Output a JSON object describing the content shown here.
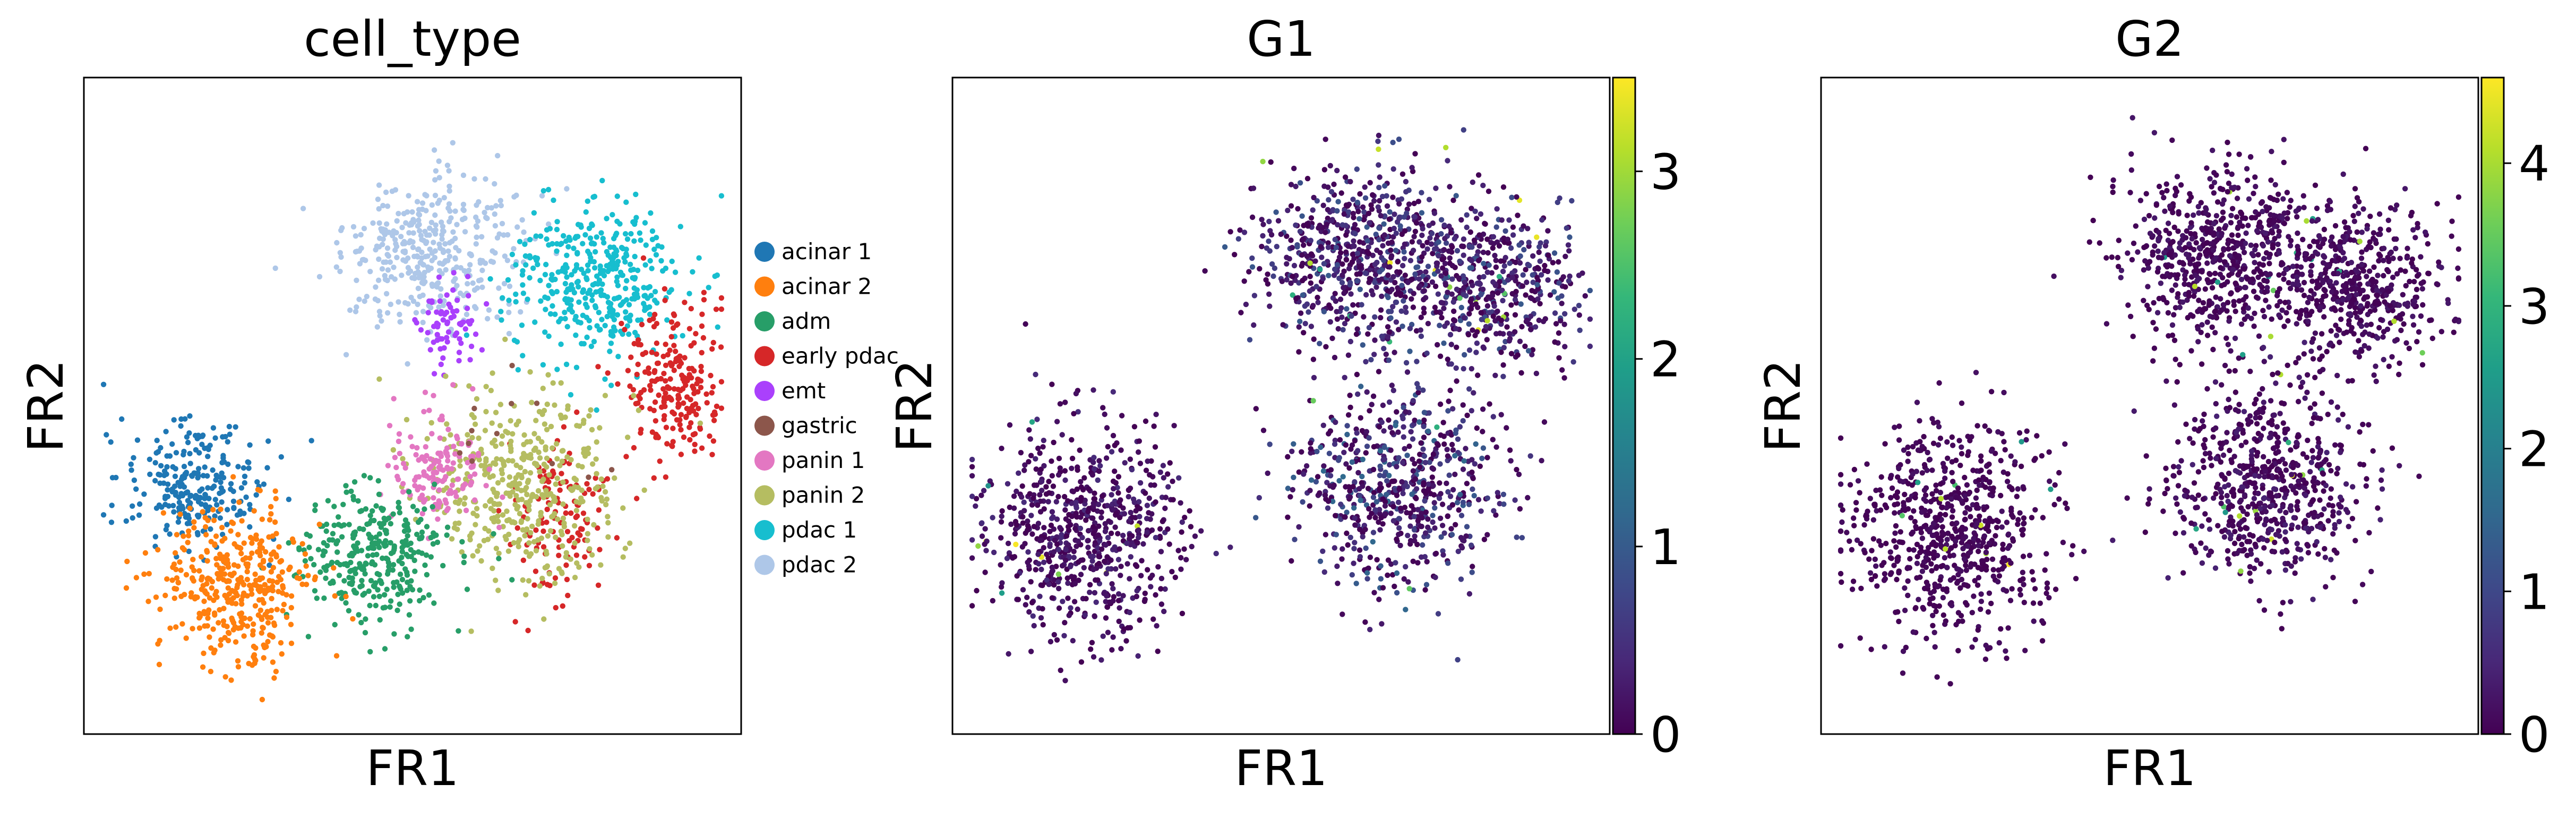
{
  "colorbar_colors": [
    "#440154",
    "#482878",
    "#3e4989",
    "#31688e",
    "#26828e",
    "#1f9e89",
    "#35b779",
    "#6ece58",
    "#b5de2b",
    "#fde725"
  ],
  "chart_data": [
    {
      "type": "scatter",
      "title": "cell_type",
      "xlabel": "FR1",
      "ylabel": "FR2",
      "coloring": "categorical",
      "legend": {
        "placement": "right",
        "entries": [
          {
            "name": "acinar 1",
            "color": "#1f77b4"
          },
          {
            "name": "acinar 2",
            "color": "#ff7f0e"
          },
          {
            "name": "adm",
            "color": "#279e68"
          },
          {
            "name": "early pdac",
            "color": "#d62728"
          },
          {
            "name": "emt",
            "color": "#aa40fc"
          },
          {
            "name": "gastric",
            "color": "#8c564b"
          },
          {
            "name": "panin 1",
            "color": "#e377c2"
          },
          {
            "name": "panin 2",
            "color": "#b5bd61"
          },
          {
            "name": "pdac 1",
            "color": "#17becf"
          },
          {
            "name": "pdac 2",
            "color": "#aec7e8"
          }
        ]
      },
      "clusters": [
        {
          "category": "pdac 2",
          "center": [
            0.53,
            0.27
          ],
          "spread": [
            0.11,
            0.09
          ],
          "count": 380
        },
        {
          "category": "pdac 1",
          "center": [
            0.78,
            0.31
          ],
          "spread": [
            0.11,
            0.1
          ],
          "count": 380
        },
        {
          "category": "early pdac",
          "center": [
            0.9,
            0.46
          ],
          "spread": [
            0.06,
            0.1
          ],
          "count": 220
        },
        {
          "category": "early pdac",
          "center": [
            0.72,
            0.68
          ],
          "spread": [
            0.06,
            0.1
          ],
          "count": 120
        },
        {
          "category": "emt",
          "center": [
            0.56,
            0.38
          ],
          "spread": [
            0.04,
            0.06
          ],
          "count": 70
        },
        {
          "category": "panin 2",
          "center": [
            0.67,
            0.62
          ],
          "spread": [
            0.12,
            0.11
          ],
          "count": 420
        },
        {
          "category": "panin 1",
          "center": [
            0.54,
            0.6
          ],
          "spread": [
            0.06,
            0.07
          ],
          "count": 150
        },
        {
          "category": "adm",
          "center": [
            0.44,
            0.73
          ],
          "spread": [
            0.09,
            0.08
          ],
          "count": 320
        },
        {
          "category": "acinar 1",
          "center": [
            0.17,
            0.62
          ],
          "spread": [
            0.09,
            0.08
          ],
          "count": 250
        },
        {
          "category": "acinar 2",
          "center": [
            0.23,
            0.77
          ],
          "spread": [
            0.1,
            0.1
          ],
          "count": 380
        },
        {
          "category": "gastric",
          "center": [
            0.66,
            0.56
          ],
          "spread": [
            0.1,
            0.1
          ],
          "count": 12
        }
      ]
    },
    {
      "type": "scatter",
      "title": "G1",
      "xlabel": "FR1",
      "ylabel": "FR2",
      "coloring": "continuous",
      "colormap": "viridis",
      "colorbar_range": [
        0,
        3.5
      ],
      "colorbar_ticks": [
        "0",
        "1",
        "2",
        "3"
      ],
      "colorbar_tick_values": [
        0,
        1,
        2,
        3
      ],
      "expression": "moderate, scattered highs in upper-right and middle clusters",
      "clusters": [
        {
          "center": [
            0.62,
            0.27
          ],
          "spread": [
            0.13,
            0.11
          ],
          "count": 700,
          "mean_value": 0.45
        },
        {
          "center": [
            0.82,
            0.32
          ],
          "spread": [
            0.1,
            0.1
          ],
          "count": 450,
          "mean_value": 0.45
        },
        {
          "center": [
            0.68,
            0.62
          ],
          "spread": [
            0.12,
            0.12
          ],
          "count": 650,
          "mean_value": 0.55
        },
        {
          "center": [
            0.2,
            0.69
          ],
          "spread": [
            0.12,
            0.13
          ],
          "count": 700,
          "mean_value": 0.2
        }
      ]
    },
    {
      "type": "scatter",
      "title": "G2",
      "xlabel": "FR1",
      "ylabel": "FR2",
      "coloring": "continuous",
      "colormap": "viridis",
      "colorbar_range": [
        0,
        4.6
      ],
      "colorbar_ticks": [
        "0",
        "1",
        "2",
        "3",
        "4"
      ],
      "colorbar_tick_values": [
        0,
        1,
        2,
        3,
        4
      ],
      "expression": "mostly low, sparse highs",
      "clusters": [
        {
          "center": [
            0.62,
            0.27
          ],
          "spread": [
            0.13,
            0.11
          ],
          "count": 700,
          "mean_value": 0.15
        },
        {
          "center": [
            0.82,
            0.32
          ],
          "spread": [
            0.1,
            0.1
          ],
          "count": 450,
          "mean_value": 0.15
        },
        {
          "center": [
            0.68,
            0.62
          ],
          "spread": [
            0.12,
            0.12
          ],
          "count": 650,
          "mean_value": 0.2
        },
        {
          "center": [
            0.2,
            0.69
          ],
          "spread": [
            0.12,
            0.13
          ],
          "count": 700,
          "mean_value": 0.1
        }
      ]
    }
  ]
}
